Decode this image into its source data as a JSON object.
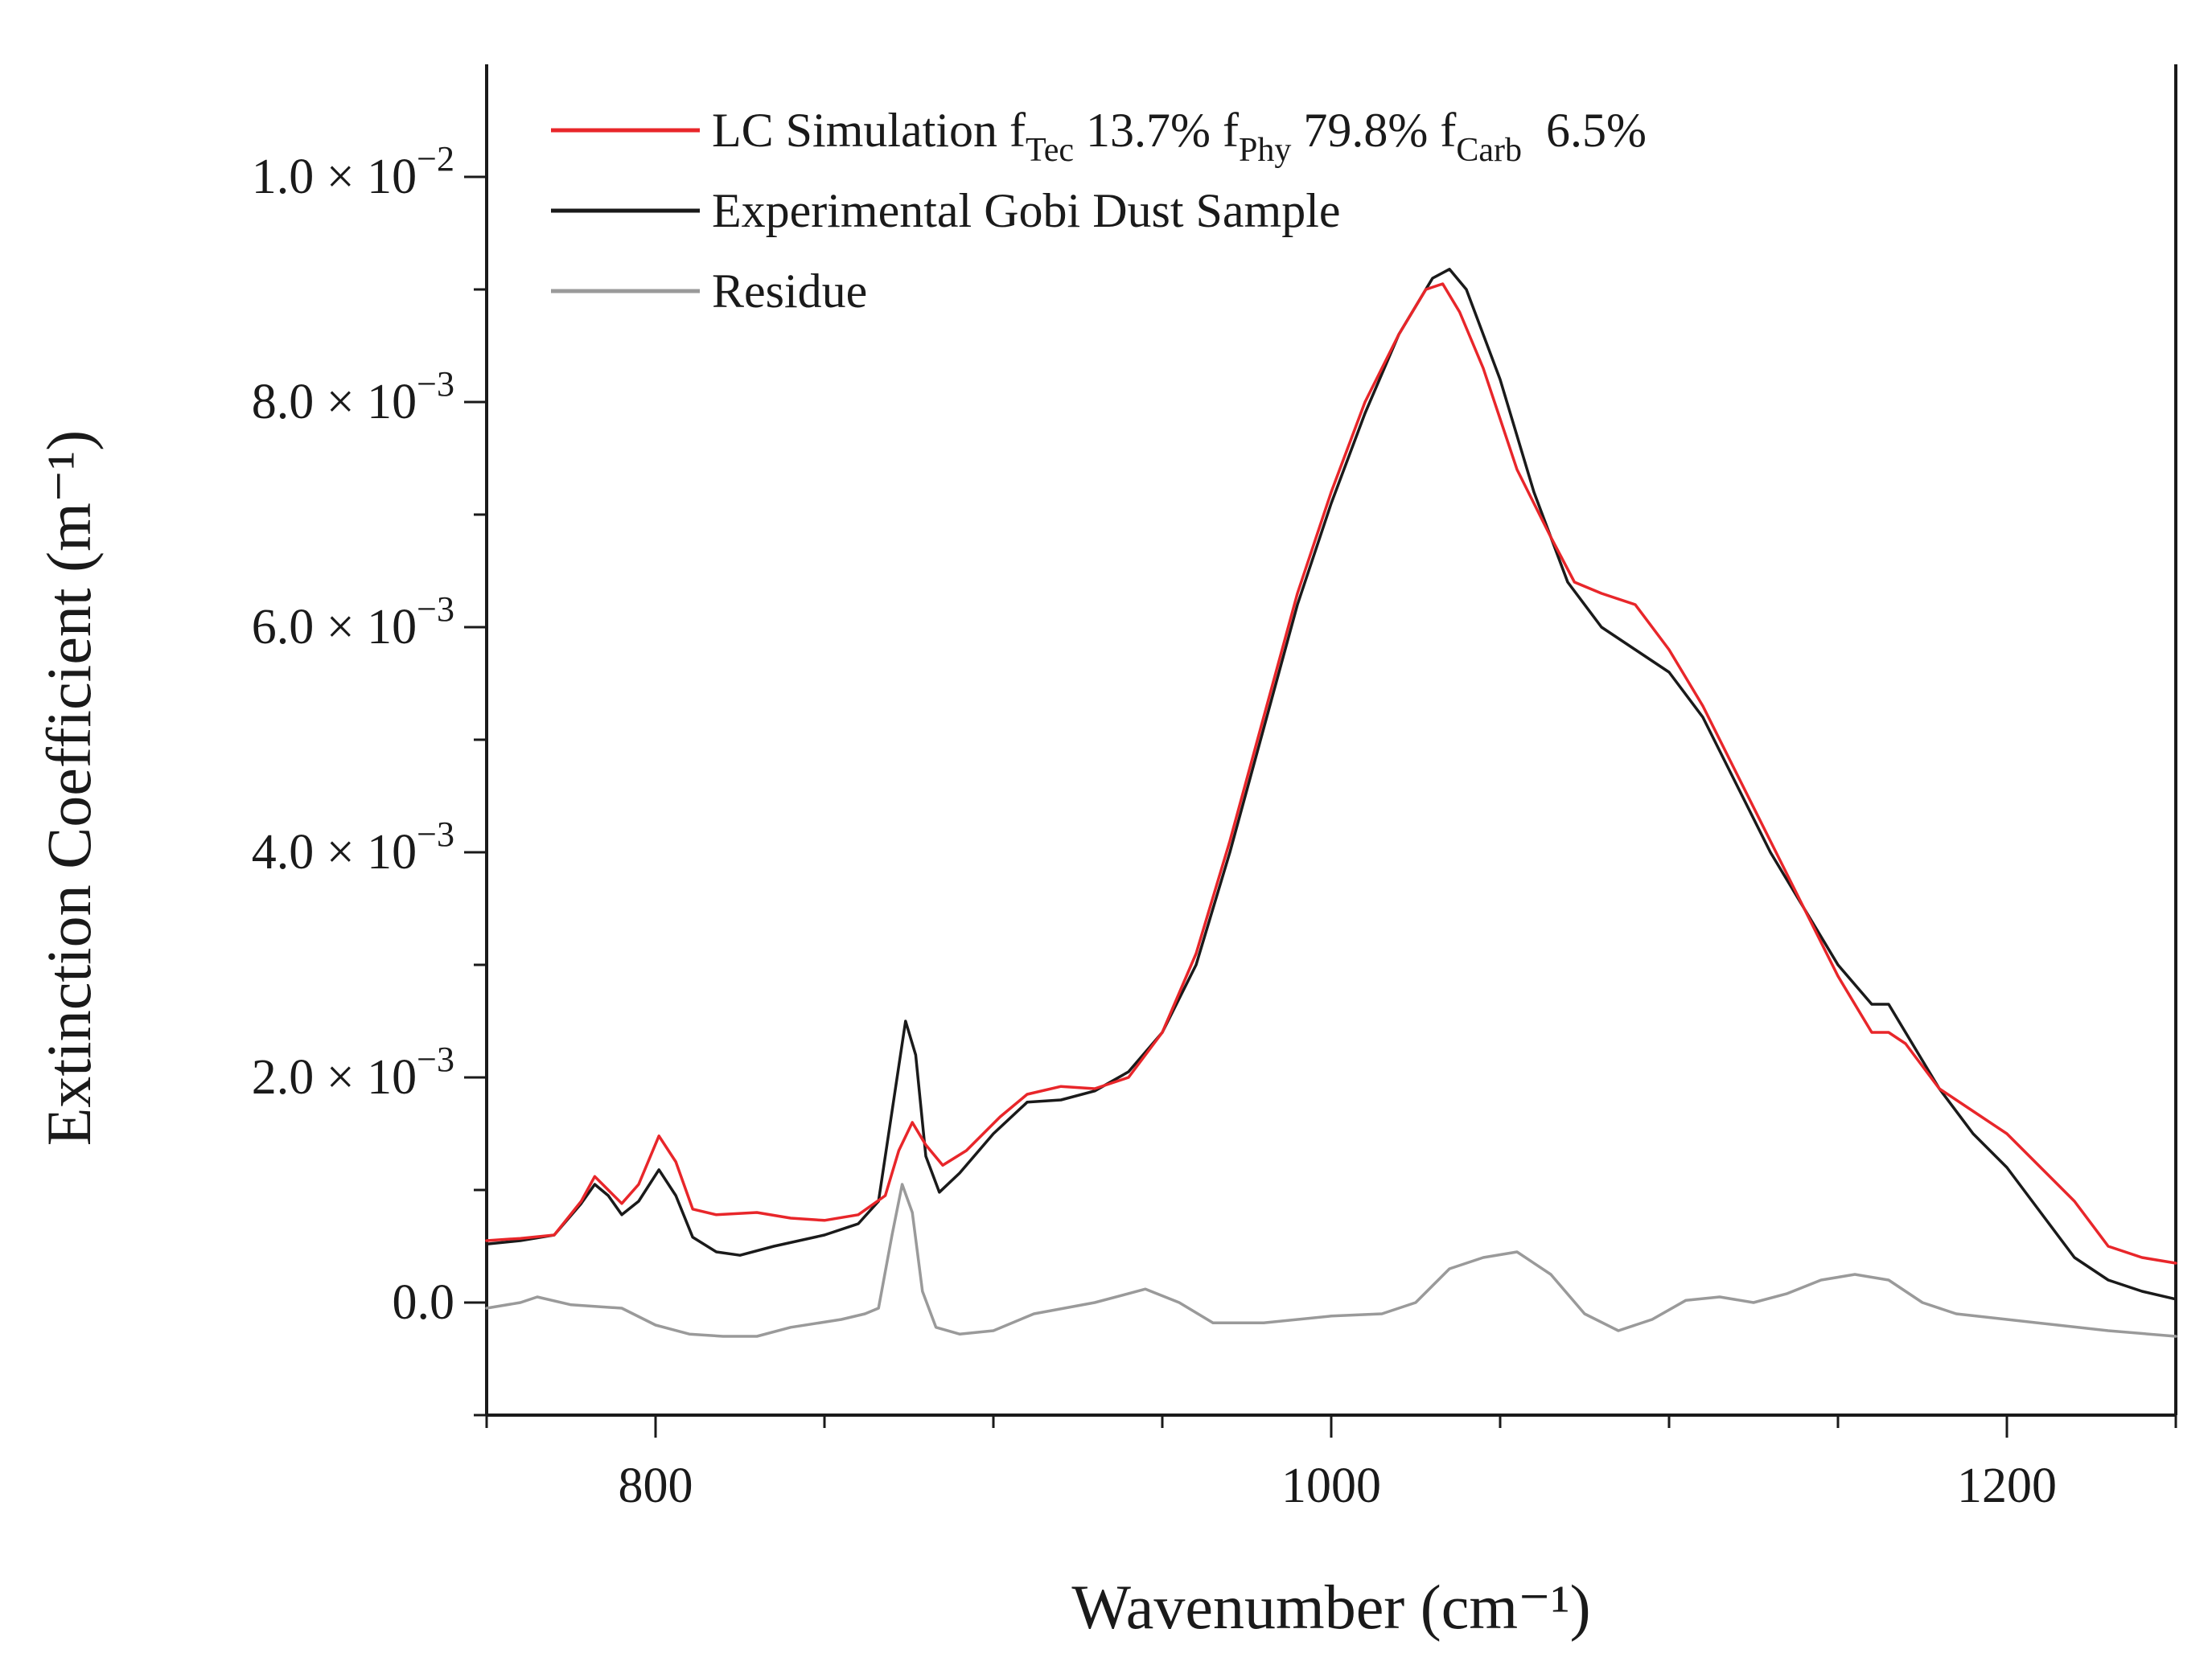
{
  "chart_data": {
    "type": "line",
    "title": "",
    "xlabel": "Wavenumber (cm⁻¹)",
    "ylabel": "Extinction Coefficient (m⁻¹)",
    "xlim": [
      750,
      1250
    ],
    "ylim": [
      -0.001,
      0.011
    ],
    "x_ticks": [
      800,
      1000,
      1200
    ],
    "x_tick_labels": [
      "800",
      "1000",
      "1200"
    ],
    "y_ticks": [
      0,
      0.002,
      0.004,
      0.006,
      0.008,
      0.01
    ],
    "y_tick_labels": [
      {
        "mant": "0.0",
        "exp": ""
      },
      {
        "mant": "2.0 × 10",
        "exp": "−3"
      },
      {
        "mant": "4.0 × 10",
        "exp": "−3"
      },
      {
        "mant": "6.0 × 10",
        "exp": "−3"
      },
      {
        "mant": "8.0 × 10",
        "exp": "−3"
      },
      {
        "mant": "1.0 × 10",
        "exp": "−2"
      }
    ],
    "grid": false,
    "legend_position": "top-left",
    "legend": [
      {
        "series": 0,
        "parts": [
          {
            "t": "LC Simulation f"
          },
          {
            "t": "Tec",
            "sub": true
          },
          {
            "t": " 13.7% f"
          },
          {
            "t": "Phy",
            "sub": true
          },
          {
            "t": " 79.8% f"
          },
          {
            "t": "Carb",
            "sub": true
          },
          {
            "t": "  6.5%"
          }
        ]
      },
      {
        "series": 1,
        "parts": [
          {
            "t": "Experimental Gobi Dust Sample"
          }
        ]
      },
      {
        "series": 2,
        "parts": [
          {
            "t": "Residue"
          }
        ]
      }
    ],
    "series": [
      {
        "name": "LC Simulation f Tec 13.7% f Phy 79.8% f Carb 6.5%",
        "color": "#e8262a",
        "points": [
          [
            750,
            0.00055
          ],
          [
            760,
            0.00057
          ],
          [
            770,
            0.0006
          ],
          [
            778,
            0.0009
          ],
          [
            782,
            0.00112
          ],
          [
            786,
            0.001
          ],
          [
            790,
            0.00088
          ],
          [
            795,
            0.00105
          ],
          [
            801,
            0.00148
          ],
          [
            806,
            0.00125
          ],
          [
            811,
            0.00083
          ],
          [
            818,
            0.00078
          ],
          [
            830,
            0.0008
          ],
          [
            840,
            0.00075
          ],
          [
            850,
            0.00073
          ],
          [
            860,
            0.00078
          ],
          [
            868,
            0.00095
          ],
          [
            872,
            0.00135
          ],
          [
            876,
            0.0016
          ],
          [
            880,
            0.0014
          ],
          [
            885,
            0.00122
          ],
          [
            892,
            0.00135
          ],
          [
            902,
            0.00165
          ],
          [
            910,
            0.00185
          ],
          [
            920,
            0.00192
          ],
          [
            930,
            0.0019
          ],
          [
            940,
            0.002
          ],
          [
            950,
            0.0024
          ],
          [
            960,
            0.0031
          ],
          [
            970,
            0.0041
          ],
          [
            980,
            0.0052
          ],
          [
            990,
            0.0063
          ],
          [
            1000,
            0.0072
          ],
          [
            1010,
            0.008
          ],
          [
            1020,
            0.0086
          ],
          [
            1028,
            0.009
          ],
          [
            1033,
            0.00905
          ],
          [
            1038,
            0.0088
          ],
          [
            1045,
            0.0083
          ],
          [
            1055,
            0.0074
          ],
          [
            1065,
            0.0068
          ],
          [
            1072,
            0.0064
          ],
          [
            1080,
            0.0063
          ],
          [
            1090,
            0.0062
          ],
          [
            1100,
            0.0058
          ],
          [
            1110,
            0.0053
          ],
          [
            1120,
            0.0047
          ],
          [
            1130,
            0.0041
          ],
          [
            1140,
            0.0035
          ],
          [
            1150,
            0.0029
          ],
          [
            1160,
            0.0024
          ],
          [
            1165,
            0.0024
          ],
          [
            1170,
            0.0023
          ],
          [
            1180,
            0.0019
          ],
          [
            1190,
            0.0017
          ],
          [
            1200,
            0.0015
          ],
          [
            1210,
            0.0012
          ],
          [
            1220,
            0.0009
          ],
          [
            1230,
            0.0005
          ],
          [
            1240,
            0.0004
          ],
          [
            1250,
            0.00035
          ]
        ]
      },
      {
        "name": "Experimental Gobi Dust Sample",
        "color": "#1a1a1a",
        "points": [
          [
            750,
            0.00052
          ],
          [
            760,
            0.00055
          ],
          [
            770,
            0.0006
          ],
          [
            778,
            0.00088
          ],
          [
            782,
            0.00105
          ],
          [
            786,
            0.00095
          ],
          [
            790,
            0.00078
          ],
          [
            795,
            0.0009
          ],
          [
            801,
            0.00118
          ],
          [
            806,
            0.00095
          ],
          [
            811,
            0.00058
          ],
          [
            818,
            0.00045
          ],
          [
            825,
            0.00042
          ],
          [
            835,
            0.0005
          ],
          [
            850,
            0.0006
          ],
          [
            860,
            0.0007
          ],
          [
            866,
            0.0009
          ],
          [
            870,
            0.0017
          ],
          [
            874,
            0.0025
          ],
          [
            877,
            0.0022
          ],
          [
            880,
            0.0013
          ],
          [
            884,
            0.00098
          ],
          [
            890,
            0.00115
          ],
          [
            900,
            0.0015
          ],
          [
            910,
            0.00178
          ],
          [
            920,
            0.0018
          ],
          [
            930,
            0.00188
          ],
          [
            940,
            0.00205
          ],
          [
            950,
            0.0024
          ],
          [
            960,
            0.003
          ],
          [
            970,
            0.004
          ],
          [
            980,
            0.0051
          ],
          [
            990,
            0.0062
          ],
          [
            1000,
            0.0071
          ],
          [
            1010,
            0.0079
          ],
          [
            1020,
            0.0086
          ],
          [
            1030,
            0.0091
          ],
          [
            1035,
            0.00918
          ],
          [
            1040,
            0.009
          ],
          [
            1050,
            0.0082
          ],
          [
            1060,
            0.0072
          ],
          [
            1070,
            0.0064
          ],
          [
            1080,
            0.006
          ],
          [
            1090,
            0.0058
          ],
          [
            1100,
            0.0056
          ],
          [
            1110,
            0.0052
          ],
          [
            1120,
            0.0046
          ],
          [
            1130,
            0.004
          ],
          [
            1140,
            0.0035
          ],
          [
            1150,
            0.003
          ],
          [
            1160,
            0.00265
          ],
          [
            1165,
            0.00265
          ],
          [
            1170,
            0.0024
          ],
          [
            1180,
            0.0019
          ],
          [
            1190,
            0.0015
          ],
          [
            1200,
            0.0012
          ],
          [
            1210,
            0.0008
          ],
          [
            1220,
            0.0004
          ],
          [
            1230,
            0.0002
          ],
          [
            1240,
            0.0001
          ],
          [
            1250,
            3e-05
          ]
        ]
      },
      {
        "name": "Residue",
        "color": "#9a9a9a",
        "points": [
          [
            750,
            -5e-05
          ],
          [
            760,
            0.0
          ],
          [
            765,
            5e-05
          ],
          [
            775,
            -2e-05
          ],
          [
            790,
            -5e-05
          ],
          [
            800,
            -0.0002
          ],
          [
            810,
            -0.00028
          ],
          [
            820,
            -0.0003
          ],
          [
            830,
            -0.0003
          ],
          [
            840,
            -0.00022
          ],
          [
            855,
            -0.00015
          ],
          [
            862,
            -0.0001
          ],
          [
            866,
            -5e-05
          ],
          [
            870,
            0.0006
          ],
          [
            873,
            0.00105
          ],
          [
            876,
            0.0008
          ],
          [
            879,
            0.0001
          ],
          [
            883,
            -0.00022
          ],
          [
            890,
            -0.00028
          ],
          [
            900,
            -0.00025
          ],
          [
            912,
            -0.0001
          ],
          [
            930,
            0.0
          ],
          [
            945,
            0.00012
          ],
          [
            955,
            0.0
          ],
          [
            965,
            -0.00018
          ],
          [
            980,
            -0.00018
          ],
          [
            1000,
            -0.00012
          ],
          [
            1015,
            -0.0001
          ],
          [
            1025,
            0.0
          ],
          [
            1035,
            0.0003
          ],
          [
            1045,
            0.0004
          ],
          [
            1055,
            0.00045
          ],
          [
            1065,
            0.00025
          ],
          [
            1075,
            -0.0001
          ],
          [
            1085,
            -0.00025
          ],
          [
            1095,
            -0.00015
          ],
          [
            1105,
            2e-05
          ],
          [
            1115,
            5e-05
          ],
          [
            1125,
            0.0
          ],
          [
            1135,
            8e-05
          ],
          [
            1145,
            0.0002
          ],
          [
            1155,
            0.00025
          ],
          [
            1165,
            0.0002
          ],
          [
            1175,
            0.0
          ],
          [
            1185,
            -0.0001
          ],
          [
            1200,
            -0.00015
          ],
          [
            1215,
            -0.0002
          ],
          [
            1230,
            -0.00025
          ],
          [
            1250,
            -0.0003
          ]
        ]
      }
    ]
  }
}
